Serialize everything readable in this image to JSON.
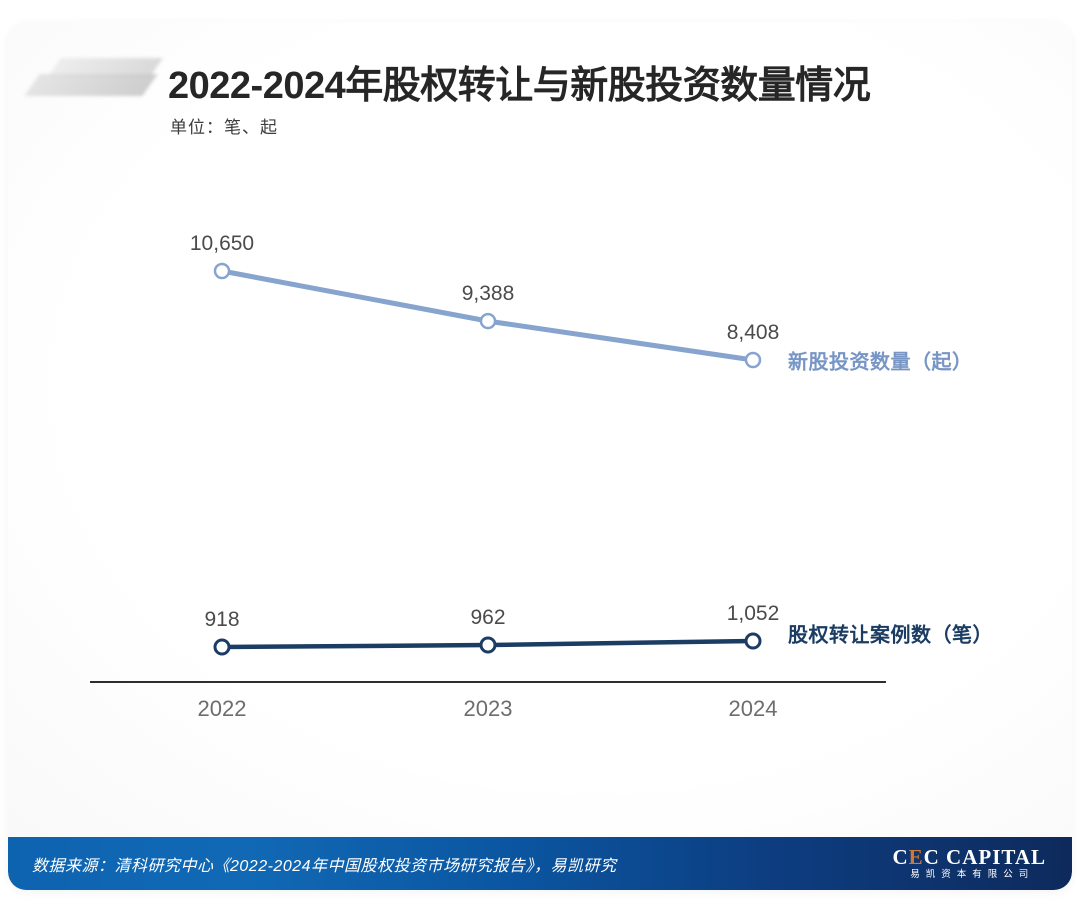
{
  "header": {
    "title": "2022-2024年股权转让与新股投资数量情况",
    "subtitle": "单位：笔、起"
  },
  "chart_data": {
    "type": "line",
    "title": "2022-2024年股权转让与新股投资数量情况",
    "unit_note": "单位：笔、起",
    "categories": [
      "2022",
      "2023",
      "2024"
    ],
    "series": [
      {
        "name": "新股投资数量（起）",
        "values": [
          10650,
          9388,
          8408
        ],
        "labels": [
          "10,650",
          "9,388",
          "8,408"
        ],
        "color": "#86a4ce",
        "legend_color": "#7795c5"
      },
      {
        "name": "股权转让案例数（笔）",
        "values": [
          918,
          962,
          1052
        ],
        "labels": [
          "918",
          "962",
          "1,052"
        ],
        "color": "#1b3c63",
        "legend_color": "#1b3c63"
      }
    ],
    "xlabel": "",
    "ylabel": "",
    "grid": false,
    "legend_position": "right-of-last-point",
    "marker": "open-circle"
  },
  "footer": {
    "source_text": "数据来源：清科研究中心《2022-2024年中国股权投资市场研究报告》，易凯研究",
    "logo": {
      "brand_part1": "C",
      "brand_accent": "E",
      "brand_part2": "C CAPITAL",
      "brand_sub": "易凯资本有限公司"
    }
  }
}
